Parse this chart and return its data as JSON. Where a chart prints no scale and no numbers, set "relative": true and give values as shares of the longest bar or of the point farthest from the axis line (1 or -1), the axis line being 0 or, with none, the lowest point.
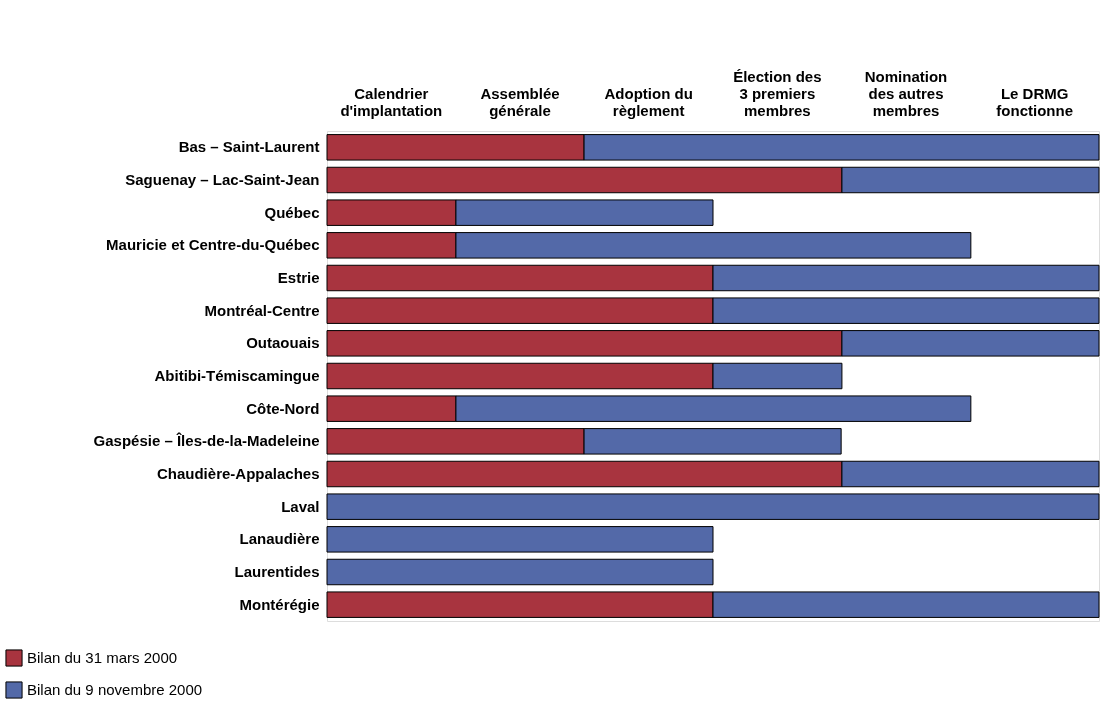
{
  "chart_data": {
    "type": "bar",
    "orientation": "horizontal",
    "stacked": true,
    "relative": true,
    "categories": [
      "Bas – Saint-Laurent",
      "Saguenay – Lac-Saint-Jean",
      "Québec",
      "Mauricie et Centre-du-Québec",
      "Estrie",
      "Montréal-Centre",
      "Outaouais",
      "Abitibi-Témiscamingue",
      "Côte-Nord",
      "Gaspésie – Îles-de-la-Madeleine",
      "Chaudière-Appalaches",
      "Laval",
      "Lanaudière",
      "Laurentides",
      "Montérégie"
    ],
    "series": [
      {
        "name": "Bilan du 31 mars 2000",
        "color": "#a8343f",
        "values": [
          0.333,
          0.667,
          0.167,
          0.167,
          0.5,
          0.5,
          0.667,
          0.5,
          0.167,
          0.333,
          0.667,
          null,
          null,
          null,
          0.5
        ]
      },
      {
        "name": "Bilan du 9 novembre 2000",
        "color": "#5369a8",
        "values": [
          0.667,
          0.333,
          0.333,
          0.667,
          0.5,
          0.5,
          0.333,
          0.167,
          0.667,
          0.333,
          0.333,
          1,
          0.5,
          0.5,
          0.5
        ]
      }
    ],
    "annotations": [
      "Calendrier d'implantation",
      "Assemblée générale",
      "Adoption du règlement",
      "Élection des 3 premiers membres",
      "Nomination des autres membres",
      "Le DRMG fonctionne"
    ],
    "legend": "bottom left"
  }
}
